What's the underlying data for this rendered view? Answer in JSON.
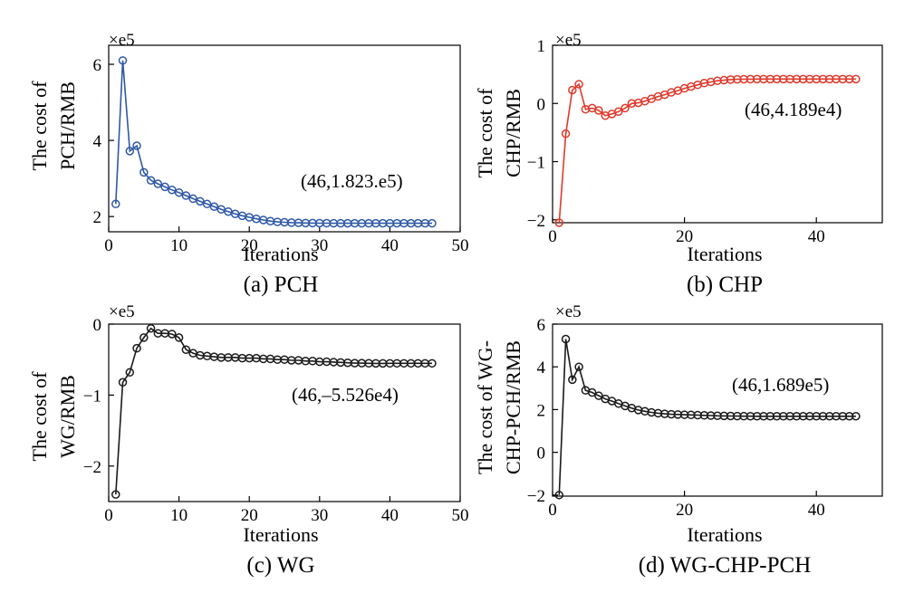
{
  "chart_data": [
    {
      "type": "line",
      "caption": "(a) PCH",
      "multiplier": "×e5",
      "ylabel_lines": [
        "The cost of",
        "PCH/RMB"
      ],
      "xlabel": "Iterations",
      "annotation": "(46,1.823.e5)",
      "color": "#2e58a6",
      "xlim": [
        0,
        50
      ],
      "ylim": [
        1.6,
        6.5
      ],
      "xticks": [
        0,
        10,
        20,
        30,
        40,
        50
      ],
      "yticks": [
        2,
        4,
        6
      ],
      "x": [
        1,
        2,
        3,
        4,
        5,
        6,
        7,
        8,
        9,
        10,
        11,
        12,
        13,
        14,
        15,
        16,
        17,
        18,
        19,
        20,
        21,
        22,
        23,
        24,
        25,
        26,
        27,
        28,
        29,
        30,
        31,
        32,
        33,
        34,
        35,
        36,
        37,
        38,
        39,
        40,
        41,
        42,
        43,
        44,
        45,
        46
      ],
      "values": [
        2.33,
        6.1,
        3.72,
        3.86,
        3.16,
        2.95,
        2.86,
        2.78,
        2.7,
        2.63,
        2.55,
        2.47,
        2.4,
        2.33,
        2.26,
        2.19,
        2.13,
        2.07,
        2.02,
        1.98,
        1.94,
        1.91,
        1.88,
        1.86,
        1.85,
        1.84,
        1.835,
        1.83,
        1.828,
        1.826,
        1.825,
        1.824,
        1.824,
        1.823,
        1.823,
        1.823,
        1.823,
        1.823,
        1.823,
        1.823,
        1.823,
        1.823,
        1.823,
        1.823,
        1.823,
        1.823
      ]
    },
    {
      "type": "line",
      "caption": "(b) CHP",
      "multiplier": "×e5",
      "ylabel_lines": [
        "The cost of",
        "CHP/RMB"
      ],
      "xlabel": "Iterations",
      "annotation": "(46,4.189e4)",
      "color": "#e0392b",
      "xlim": [
        0,
        50
      ],
      "ylim": [
        -2.05,
        1.0
      ],
      "xticks": [
        0,
        20,
        40
      ],
      "yticks": [
        -2,
        -1,
        0,
        1
      ],
      "x": [
        1,
        2,
        3,
        4,
        5,
        6,
        7,
        8,
        9,
        10,
        11,
        12,
        13,
        14,
        15,
        16,
        17,
        18,
        19,
        20,
        21,
        22,
        23,
        24,
        25,
        26,
        27,
        28,
        29,
        30,
        31,
        32,
        33,
        34,
        35,
        36,
        37,
        38,
        39,
        40,
        41,
        42,
        43,
        44,
        45,
        46
      ],
      "values": [
        -2.05,
        -0.52,
        0.23,
        0.33,
        -0.1,
        -0.08,
        -0.12,
        -0.21,
        -0.18,
        -0.14,
        -0.08,
        0.0,
        0.01,
        0.04,
        0.08,
        0.12,
        0.15,
        0.19,
        0.22,
        0.26,
        0.29,
        0.32,
        0.35,
        0.37,
        0.39,
        0.4,
        0.41,
        0.415,
        0.417,
        0.418,
        0.419,
        0.419,
        0.419,
        0.419,
        0.419,
        0.419,
        0.419,
        0.419,
        0.419,
        0.419,
        0.419,
        0.419,
        0.419,
        0.419,
        0.419,
        0.419
      ]
    },
    {
      "type": "line",
      "caption": "(c) WG",
      "multiplier": "×e5",
      "ylabel_lines": [
        "The cost of",
        "WG/RMB"
      ],
      "xlabel": "Iterations",
      "annotation": "(46,–5.526e4)",
      "color": "#1a1a1a",
      "xlim": [
        0,
        50
      ],
      "ylim": [
        -2.5,
        0
      ],
      "xticks": [
        0,
        10,
        20,
        30,
        40,
        50
      ],
      "yticks": [
        -2,
        -1,
        0
      ],
      "x": [
        1,
        2,
        3,
        4,
        5,
        6,
        7,
        8,
        9,
        10,
        11,
        12,
        13,
        14,
        15,
        16,
        17,
        18,
        19,
        20,
        21,
        22,
        23,
        24,
        25,
        26,
        27,
        28,
        29,
        30,
        31,
        32,
        33,
        34,
        35,
        36,
        37,
        38,
        39,
        40,
        41,
        42,
        43,
        44,
        45,
        46
      ],
      "values": [
        -2.4,
        -0.82,
        -0.68,
        -0.34,
        -0.19,
        -0.06,
        -0.13,
        -0.13,
        -0.14,
        -0.19,
        -0.36,
        -0.41,
        -0.44,
        -0.45,
        -0.46,
        -0.47,
        -0.47,
        -0.47,
        -0.48,
        -0.48,
        -0.48,
        -0.49,
        -0.49,
        -0.5,
        -0.5,
        -0.51,
        -0.51,
        -0.52,
        -0.52,
        -0.53,
        -0.53,
        -0.535,
        -0.54,
        -0.545,
        -0.55,
        -0.55,
        -0.552,
        -0.553,
        -0.553,
        -0.5526,
        -0.5526,
        -0.5526,
        -0.5526,
        -0.5526,
        -0.5526,
        -0.5526
      ]
    },
    {
      "type": "line",
      "caption": "(d) WG-CHP-PCH",
      "multiplier": "×e5",
      "ylabel_lines": [
        "The cost of WG-",
        "CHP-PCH/RMB"
      ],
      "xlabel": "Iterations",
      "annotation": "(46,1.689e5)",
      "color": "#1a1a1a",
      "xlim": [
        0,
        50
      ],
      "ylim": [
        -2.05,
        6.0
      ],
      "xticks": [
        0,
        20,
        40
      ],
      "yticks": [
        -2,
        0,
        2,
        4,
        6
      ],
      "x": [
        1,
        2,
        3,
        4,
        5,
        6,
        7,
        8,
        9,
        10,
        11,
        12,
        13,
        14,
        15,
        16,
        17,
        18,
        19,
        20,
        21,
        22,
        23,
        24,
        25,
        26,
        27,
        28,
        29,
        30,
        31,
        32,
        33,
        34,
        35,
        36,
        37,
        38,
        39,
        40,
        41,
        42,
        43,
        44,
        45,
        46
      ],
      "values": [
        -2.0,
        5.3,
        3.4,
        4.0,
        2.9,
        2.8,
        2.65,
        2.5,
        2.4,
        2.28,
        2.17,
        2.07,
        1.98,
        1.92,
        1.87,
        1.83,
        1.8,
        1.78,
        1.77,
        1.76,
        1.75,
        1.74,
        1.73,
        1.72,
        1.71,
        1.705,
        1.7,
        1.695,
        1.692,
        1.69,
        1.689,
        1.689,
        1.689,
        1.689,
        1.689,
        1.689,
        1.689,
        1.689,
        1.689,
        1.689,
        1.689,
        1.689,
        1.689,
        1.689,
        1.689,
        1.689
      ]
    }
  ]
}
